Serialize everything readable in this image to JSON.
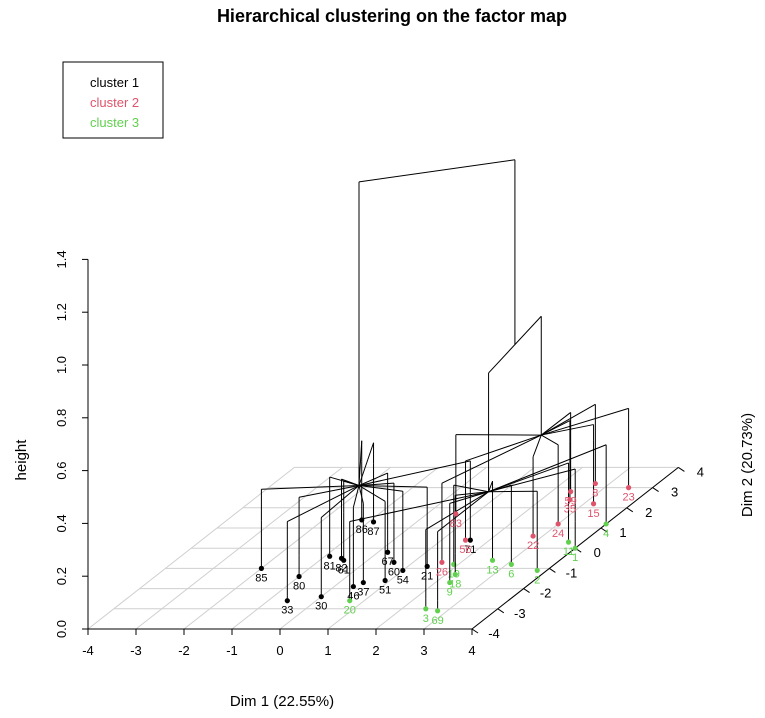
{
  "chart_data": {
    "type": "scatter",
    "title": "Hierarchical clustering on the factor map",
    "xlabel": "Dim 1 (22.55%)",
    "ylabel": "Dim 2 (20.73%)",
    "zlabel": "height",
    "xlim": [
      -4,
      4
    ],
    "ylim": [
      -4,
      4
    ],
    "zlim": [
      0,
      1.4
    ],
    "x_ticks": [
      "-4",
      "-3",
      "-2",
      "-1",
      "0",
      "1",
      "2",
      "3",
      "4"
    ],
    "y_ticks": [
      "-4",
      "-3",
      "-2",
      "-1",
      "0",
      "1",
      "2",
      "3",
      "4"
    ],
    "z_ticks": [
      "0.0",
      "0.2",
      "0.4",
      "0.6",
      "0.8",
      "1.0",
      "1.2",
      "1.4"
    ],
    "grid": true,
    "legend_position": "top-left",
    "colors": {
      "cluster 1": "#000000",
      "cluster 2": "#DF536B",
      "cluster 3": "#61D04F"
    },
    "series": [
      {
        "name": "cluster 1",
        "points": [
          {
            "label": "85",
            "x": -2.0,
            "y": -1.0,
            "z": 0.18
          },
          {
            "label": "80",
            "x": -1.0,
            "y": -1.4,
            "z": 0.08
          },
          {
            "label": "33",
            "x": -0.6,
            "y": -2.6,
            "z": 0.02
          },
          {
            "label": "82",
            "x": -0.6,
            "y": -0.5,
            "z": 0.2
          },
          {
            "label": "81",
            "x": -0.9,
            "y": -0.4,
            "z": 0.2
          },
          {
            "label": "61",
            "x": -0.5,
            "y": -0.6,
            "z": 0.18
          },
          {
            "label": "86",
            "x": -1.2,
            "y": 1.4,
            "z": 0.22
          },
          {
            "label": "87",
            "x": -0.9,
            "y": 1.3,
            "z": 0.22
          },
          {
            "label": "30",
            "x": 0.0,
            "y": -2.4,
            "z": 0.03
          },
          {
            "label": "46",
            "x": 0.4,
            "y": -1.9,
            "z": 0.05
          },
          {
            "label": "37",
            "x": 0.5,
            "y": -1.7,
            "z": 0.08
          },
          {
            "label": "51",
            "x": 0.9,
            "y": -1.6,
            "z": 0.1
          },
          {
            "label": "54",
            "x": 1.0,
            "y": -1.1,
            "z": 0.12
          },
          {
            "label": "21",
            "x": 1.4,
            "y": -0.9,
            "z": 0.15
          },
          {
            "label": "67",
            "x": 0.2,
            "y": -0.2,
            "z": 0.2
          },
          {
            "label": "71",
            "x": 1.6,
            "y": 0.4,
            "z": 0.18
          },
          {
            "label": "60",
            "x": 0.6,
            "y": -0.7,
            "z": 0.15
          }
        ]
      },
      {
        "name": "cluster 2",
        "points": [
          {
            "label": "23",
            "x": 3.5,
            "y": 3.0,
            "z": 0.26
          },
          {
            "label": "15",
            "x": 3.2,
            "y": 2.2,
            "z": 0.24
          },
          {
            "label": "24",
            "x": 3.0,
            "y": 1.2,
            "z": 0.2
          },
          {
            "label": "22",
            "x": 2.8,
            "y": 0.6,
            "z": 0.16
          },
          {
            "label": "83",
            "x": 0.6,
            "y": 1.7,
            "z": 0.2
          },
          {
            "label": "56",
            "x": 1.5,
            "y": 0.4,
            "z": 0.2
          },
          {
            "label": "35",
            "x": 2.6,
            "y": 2.4,
            "z": 0.22
          },
          {
            "label": "59",
            "x": 2.4,
            "y": 2.8,
            "z": 0.22
          },
          {
            "label": "26",
            "x": 1.6,
            "y": -0.7,
            "z": 0.14
          },
          {
            "label": "8",
            "x": 2.7,
            "y": 3.2,
            "z": 0.22
          }
        ]
      },
      {
        "name": "cluster 3",
        "points": [
          {
            "label": "11",
            "x": 3.7,
            "y": 0.3,
            "z": 0.12
          },
          {
            "label": "4",
            "x": 4.0,
            "y": 1.2,
            "z": 0.14
          },
          {
            "label": "1",
            "x": 4.0,
            "y": 0.0,
            "z": 0.1
          },
          {
            "label": "2",
            "x": 3.8,
            "y": -1.1,
            "z": 0.08
          },
          {
            "label": "6",
            "x": 3.1,
            "y": -0.8,
            "z": 0.1
          },
          {
            "label": "19",
            "x": 1.9,
            "y": -0.8,
            "z": 0.1
          },
          {
            "label": "18",
            "x": 2.2,
            "y": -1.3,
            "z": 0.08
          },
          {
            "label": "9",
            "x": 2.3,
            "y": -1.7,
            "z": 0.07
          },
          {
            "label": "13",
            "x": 2.6,
            "y": -0.6,
            "z": 0.1
          },
          {
            "label": "3",
            "x": 2.5,
            "y": -3.0,
            "z": 0.04
          },
          {
            "label": "69",
            "x": 2.8,
            "y": -3.1,
            "z": 0.04
          },
          {
            "label": "20",
            "x": 0.7,
            "y": -2.6,
            "z": 0.03
          }
        ]
      }
    ]
  }
}
